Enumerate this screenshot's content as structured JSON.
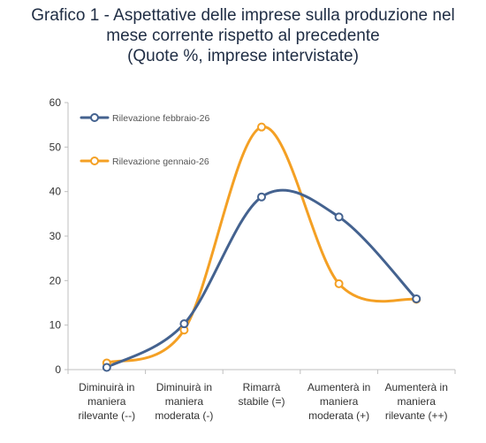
{
  "chart_data": {
    "type": "line",
    "title_lines": [
      "Grafico 1 - Aspettative delle imprese sulla produzione nel",
      "mese corrente rispetto al precedente"
    ],
    "subtitle": "(Quote %, imprese intervistate)",
    "categories": [
      [
        "Diminuirà in",
        "maniera",
        "rilevante (--)"
      ],
      [
        "Diminuirà in",
        "maniera",
        "moderata (-)"
      ],
      [
        "Rimarrà",
        "stabile (=)"
      ],
      [
        "Aumenterà in",
        "maniera",
        "moderata (+)"
      ],
      [
        "Aumenterà in",
        "maniera",
        "rilevante (++)"
      ]
    ],
    "ylim": [
      0,
      60
    ],
    "yticks": [
      "0",
      "10",
      "20",
      "30",
      "40",
      "50",
      "60"
    ],
    "grid": false,
    "smooth": true,
    "legend_position": "top-left",
    "series": [
      {
        "name": "Rilevazione febbraio-26",
        "color": "#44628f",
        "values": [
          0.5,
          10.3,
          38.8,
          34.3,
          15.9
        ]
      },
      {
        "name": "Rilevazione gennaio-26",
        "color": "#f4a024",
        "values": [
          1.5,
          8.9,
          54.5,
          19.3,
          15.8
        ]
      }
    ]
  }
}
